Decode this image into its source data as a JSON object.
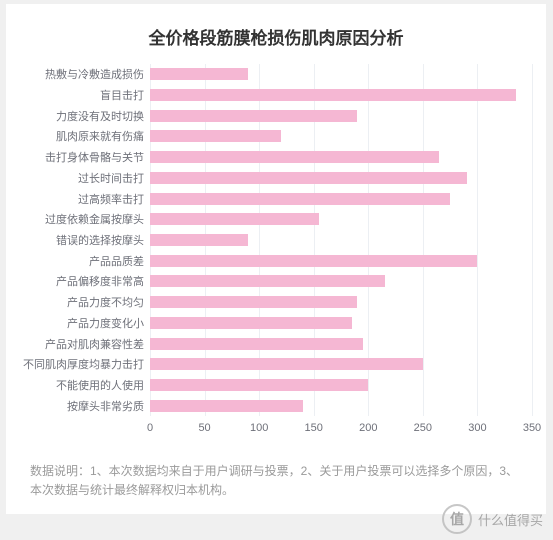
{
  "title": "全价格段筋膜枪损伤肌肉原因分析",
  "title_fontsize": 17,
  "chart": {
    "type": "bar-horizontal",
    "categories": [
      "热敷与冷敷造成损伤",
      "盲目击打",
      "力度没有及时切换",
      "肌肉原来就有伤痛",
      "击打身体骨骼与关节",
      "过长时间击打",
      "过高频率击打",
      "过度依赖金属按摩头",
      "错误的选择按摩头",
      "产品品质差",
      "产品偏移度非常高",
      "产品力度不均匀",
      "产品力度变化小",
      "产品对肌肉兼容性差",
      "不同肌肉厚度均暴力击打",
      "不能使用的人使用",
      "按摩头非常劣质"
    ],
    "values": [
      90,
      335,
      190,
      120,
      265,
      290,
      275,
      155,
      90,
      300,
      215,
      190,
      185,
      195,
      250,
      200,
      140
    ],
    "xlim": [
      0,
      350
    ],
    "xtick_step": 50,
    "bar_color": "#f5b7d3",
    "grid_color": "#eceff3",
    "label_color": "#6e7079",
    "label_fontsize": 11,
    "xticks": [
      0,
      50,
      100,
      150,
      200,
      250,
      300,
      350
    ]
  },
  "footer": "数据说明：1、本次数据均来自于用户调研与投票，2、关于用户投票可以选择多个原因，3、本次数据与统计最终解释权归本机构。",
  "watermark": {
    "glyph": "值",
    "text": "什么值得买"
  }
}
